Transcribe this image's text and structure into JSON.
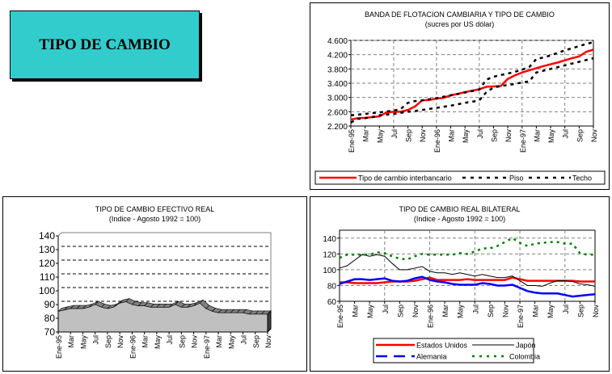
{
  "page_title": "TIPO DE CAMBIO",
  "chart_data": [
    {
      "type": "line",
      "title": "BANDA DE FLOTACION CAMBIARIA Y TIPO DE CAMBIO",
      "subtitle": "(sucres por US dólar)",
      "ylim": [
        2200,
        4600
      ],
      "yticks": [
        "2.200",
        "2.600",
        "3.000",
        "3.400",
        "3.800",
        "4.200",
        "4.600"
      ],
      "ytick_values": [
        2200,
        2600,
        3000,
        3400,
        3800,
        4200,
        4600
      ],
      "xticks": [
        "Ene-95",
        "Mar",
        "May",
        "Jul",
        "Sep",
        "Nov",
        "Ene-96",
        "Mar",
        "May",
        "Jul",
        "Sep",
        "Nov",
        "Ene-97",
        "Mar",
        "May",
        "Jul",
        "Sep",
        "Nov"
      ],
      "grid": true,
      "legend": "bottom",
      "series": [
        {
          "name": "Tipo de cambio interbancario",
          "color": "#ff0000",
          "style": "solid",
          "values": [
            2380,
            2420,
            2430,
            2450,
            2470,
            2580,
            2600,
            2600,
            2650,
            2750,
            2920,
            2930,
            2970,
            2990,
            3060,
            3100,
            3150,
            3190,
            3230,
            3300,
            3310,
            3320,
            3520,
            3620,
            3700,
            3760,
            3820,
            3880,
            3930,
            3980,
            4040,
            4100,
            4150,
            4280,
            4340
          ]
        },
        {
          "name": "Piso",
          "color": "#000000",
          "style": "dashed",
          "values": [
            2300,
            2400,
            2420,
            2450,
            2500,
            2520,
            2540,
            2570,
            2600,
            2620,
            2650,
            2680,
            2710,
            2740,
            2770,
            2810,
            2850,
            2880,
            2920,
            3150,
            3280,
            3320,
            3350,
            3380,
            3420,
            3450,
            3700,
            3750,
            3800,
            3850,
            3900,
            3950,
            4000,
            4050,
            4100
          ]
        },
        {
          "name": "Techo",
          "color": "#000000",
          "style": "dashed",
          "values": [
            2500,
            2520,
            2540,
            2560,
            2580,
            2610,
            2630,
            2680,
            2850,
            2900,
            2920,
            2950,
            2980,
            3020,
            3060,
            3100,
            3140,
            3180,
            3220,
            3500,
            3580,
            3630,
            3670,
            3720,
            3780,
            3850,
            4080,
            4120,
            4180,
            4250,
            4320,
            4380,
            4440,
            4500,
            4550
          ]
        }
      ]
    },
    {
      "type": "area",
      "title": "TIPO DE CAMBIO EFECTIVO REAL",
      "subtitle": "(Indice - Agosto 1992 = 100)",
      "ylim": [
        70,
        140
      ],
      "yticks": [
        "70",
        "80",
        "90",
        "100",
        "110",
        "120",
        "130",
        "140"
      ],
      "ytick_values": [
        70,
        80,
        90,
        100,
        110,
        120,
        130,
        140
      ],
      "xticks": [
        "Ene-95",
        "Mar",
        "May",
        "Jul",
        "Sep",
        "Nov",
        "Ene-96",
        "Mar",
        "May",
        "Jul",
        "Sep",
        "Nov",
        "Ene-97",
        "Mar",
        "May",
        "Jul",
        "Sep",
        "Nov"
      ],
      "grid": true,
      "series": [
        {
          "name": "Tipo de cambio efectivo real",
          "color": "#c0c0c0",
          "values": [
            85,
            86,
            87,
            87,
            87,
            88,
            90,
            88,
            87,
            88,
            91,
            92,
            90,
            89,
            89,
            88,
            88,
            88,
            88,
            90,
            88,
            88,
            89,
            91,
            87,
            85,
            84,
            84,
            84,
            84,
            84,
            83,
            83,
            83,
            83
          ]
        }
      ]
    },
    {
      "type": "line",
      "title": "TIPO DE CAMBIO REAL BILATERAL",
      "subtitle": "(Indice - Agosto 1992 = 100)",
      "ylim": [
        60,
        150
      ],
      "yticks": [
        "60",
        "80",
        "100",
        "120",
        "140"
      ],
      "ytick_values": [
        60,
        80,
        100,
        120,
        140
      ],
      "xticks": [
        "Ene-95",
        "Mar",
        "May",
        "Jul",
        "Sep",
        "Nov",
        "Ene-96",
        "Mar",
        "May",
        "Jul",
        "Sep",
        "Nov",
        "Ene-97",
        "Mar",
        "May",
        "Jul",
        "Sep",
        "Nov"
      ],
      "grid": true,
      "legend": "bottom",
      "series": [
        {
          "name": "Estados Unidos",
          "color": "#ff0000",
          "style": "solid",
          "values": [
            84,
            84,
            83,
            83,
            83,
            83,
            84,
            85,
            85,
            85,
            86,
            88,
            90,
            87,
            87,
            87,
            87,
            88,
            87,
            87,
            87,
            87,
            87,
            90,
            88,
            86,
            86,
            86,
            86,
            86,
            86,
            86,
            85,
            85,
            85
          ]
        },
        {
          "name": "Japón",
          "color": "#000000",
          "style": "thin",
          "values": [
            102,
            105,
            112,
            119,
            117,
            119,
            117,
            108,
            100,
            100,
            102,
            104,
            98,
            96,
            96,
            94,
            96,
            94,
            92,
            94,
            92,
            90,
            90,
            92,
            86,
            80,
            80,
            79,
            83,
            86,
            86,
            85,
            82,
            81,
            79
          ]
        },
        {
          "name": "Alemania",
          "color": "#0000ff",
          "style": "solid",
          "values": [
            82,
            85,
            88,
            88,
            87,
            88,
            89,
            86,
            85,
            86,
            89,
            91,
            87,
            85,
            84,
            82,
            81,
            81,
            81,
            83,
            82,
            80,
            80,
            81,
            77,
            73,
            71,
            70,
            70,
            70,
            68,
            66,
            67,
            68,
            69
          ]
        },
        {
          "name": "Colombia",
          "color": "#008000",
          "style": "dotted",
          "values": [
            115,
            119,
            119,
            119,
            119,
            122,
            121,
            117,
            114,
            113,
            117,
            120,
            119,
            119,
            119,
            119,
            121,
            120,
            123,
            127,
            127,
            130,
            135,
            140,
            134,
            130,
            133,
            134,
            135,
            135,
            133,
            133,
            121,
            119,
            119
          ]
        }
      ]
    }
  ]
}
